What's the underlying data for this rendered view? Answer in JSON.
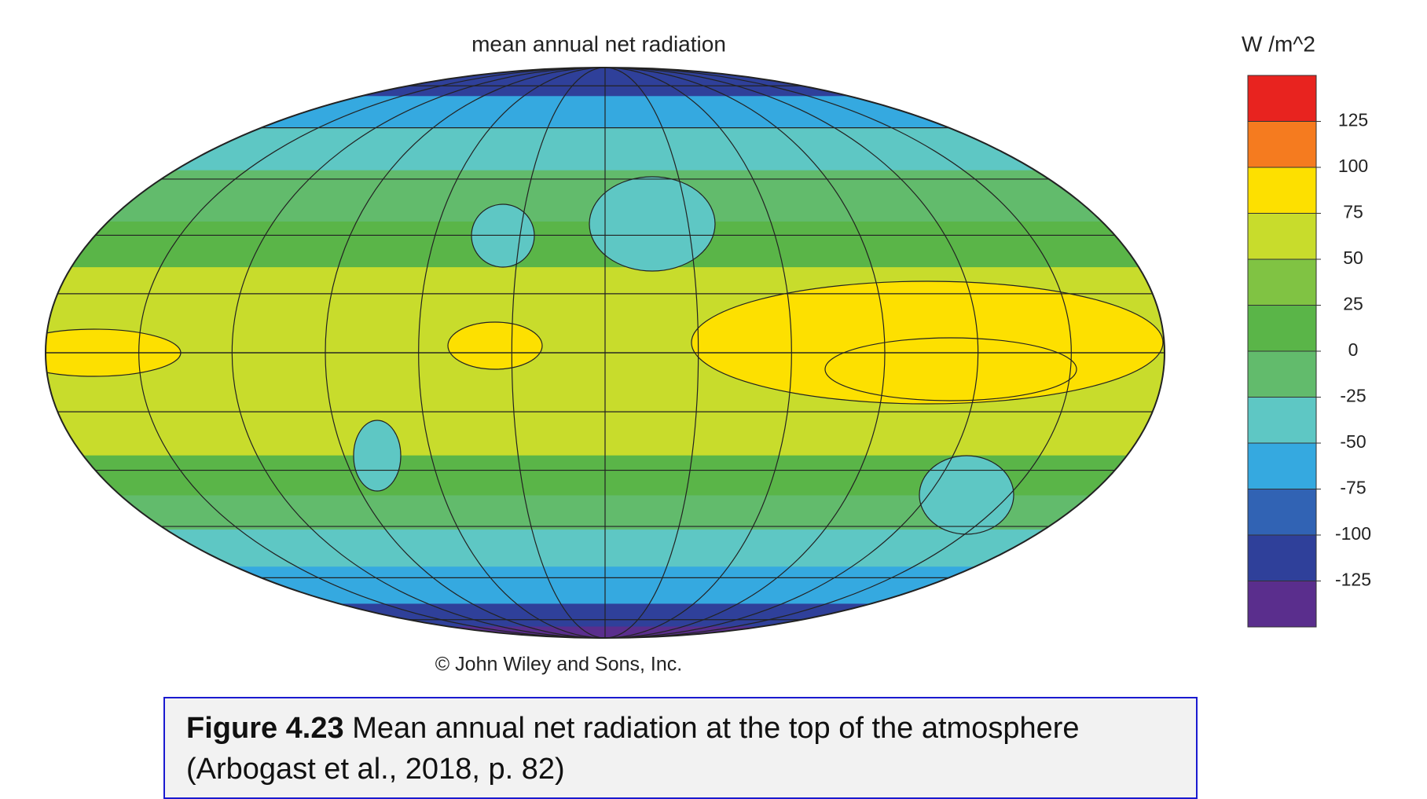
{
  "map": {
    "title": "mean annual net radiation",
    "colorbar": {
      "unit": "W /m^2",
      "ticks": [
        125,
        100,
        75,
        50,
        25,
        0,
        -25,
        -50,
        -75,
        -100,
        -125
      ],
      "colors": [
        "#e8231f",
        "#f57b1f",
        "#fde000",
        "#c8dc2c",
        "#80c343",
        "#5ab548",
        "#62bb6c",
        "#5ec7c4",
        "#35a9e0",
        "#3163b4",
        "#2f409a",
        "#5a2e8d"
      ]
    }
  },
  "credit": "© John Wiley and Sons, Inc.",
  "caption": {
    "label": "Figure 4.23",
    "text": "Mean annual net radiation at the top of the atmosphere (Arbogast et al., 2018, p. 82)"
  }
}
